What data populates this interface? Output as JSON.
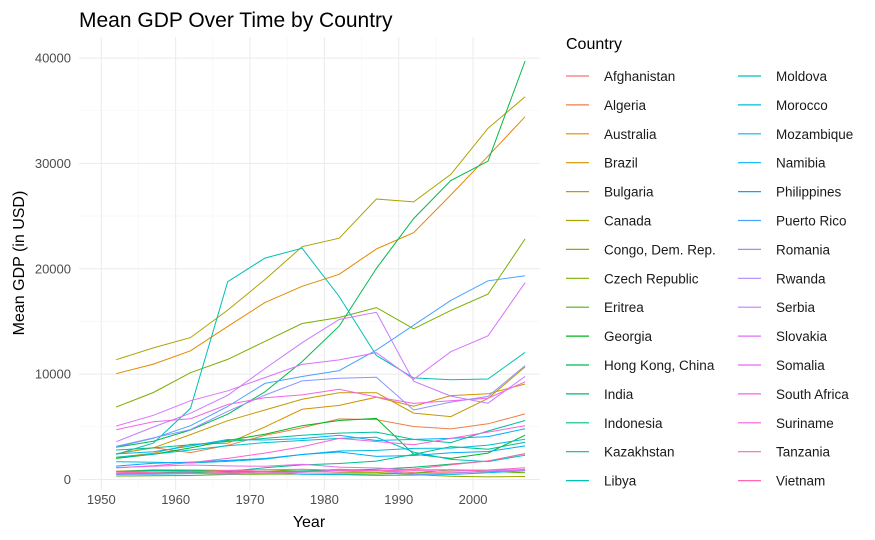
{
  "chart_data": {
    "type": "line",
    "title": "Mean GDP Over Time by Country",
    "xlabel": "Year",
    "ylabel": "Mean GDP (in USD)",
    "xlim": [
      1947,
      2009
    ],
    "ylim": [
      -1000,
      42000
    ],
    "x_ticks": [
      1950,
      1960,
      1970,
      1980,
      1990,
      2000
    ],
    "y_ticks": [
      0,
      10000,
      20000,
      30000,
      40000
    ],
    "x_tick_labels": [
      "1950",
      "1960",
      "1970",
      "1980",
      "1990",
      "2000"
    ],
    "y_tick_labels": [
      "0",
      "10000",
      "20000",
      "30000",
      "40000"
    ],
    "grid": true,
    "legend": {
      "title": "Country",
      "position": "right",
      "columns": 2
    },
    "x": [
      1952,
      1957,
      1962,
      1967,
      1972,
      1977,
      1982,
      1987,
      1992,
      1997,
      2002,
      2007
    ],
    "series": [
      {
        "name": "Afghanistan",
        "color": "#F8766D",
        "values": [
          779,
          821,
          853,
          836,
          740,
          786,
          978,
          852,
          649,
          635,
          727,
          975
        ]
      },
      {
        "name": "Algeria",
        "color": "#EF7F49",
        "values": [
          2449,
          3014,
          2551,
          3247,
          4183,
          4910,
          5745,
          5681,
          5023,
          4797,
          5288,
          6223
        ]
      },
      {
        "name": "Australia",
        "color": "#E38900",
        "values": [
          10040,
          10950,
          12217,
          14526,
          16789,
          18334,
          19477,
          21889,
          23425,
          26998,
          30688,
          34435
        ]
      },
      {
        "name": "Brazil",
        "color": "#D49200",
        "values": [
          2109,
          2487,
          3337,
          3430,
          4986,
          6660,
          7031,
          7807,
          6950,
          7958,
          8131,
          9066
        ]
      },
      {
        "name": "Bulgaria",
        "color": "#C29A00",
        "values": [
          2444,
          3009,
          4254,
          5578,
          6597,
          7612,
          8225,
          8239,
          6303,
          5970,
          7697,
          10681
        ]
      },
      {
        "name": "Canada",
        "color": "#ADA200",
        "values": [
          11367,
          12490,
          13462,
          16077,
          18971,
          22091,
          22899,
          26627,
          26343,
          28955,
          33329,
          36319
        ]
      },
      {
        "name": "Congo, Dem. Rep.",
        "color": "#96A900",
        "values": [
          781,
          906,
          896,
          862,
          905,
          796,
          674,
          672,
          458,
          313,
          241,
          278
        ]
      },
      {
        "name": "Czech Republic",
        "color": "#7BAE00",
        "values": [
          6876,
          8256,
          10137,
          11399,
          13108,
          14800,
          15377,
          16310,
          14297,
          16049,
          17596,
          22833
        ]
      },
      {
        "name": "Eritrea",
        "color": "#58B300",
        "values": [
          329,
          344,
          381,
          468,
          514,
          505,
          524,
          521,
          582,
          913,
          765,
          641
        ]
      },
      {
        "name": "Georgia",
        "color": "#00B61D",
        "values": [
          2000,
          2400,
          3000,
          3700,
          4300,
          5100,
          5600,
          5800,
          2400,
          2000,
          2500,
          4200
        ]
      },
      {
        "name": "Hong Kong, China",
        "color": "#00B94A",
        "values": [
          3054,
          3629,
          4693,
          6198,
          8316,
          11186,
          14561,
          20038,
          24758,
          28378,
          30209,
          39725
        ]
      },
      {
        "name": "India",
        "color": "#00BB6A",
        "values": [
          547,
          590,
          658,
          701,
          724,
          813,
          856,
          977,
          1164,
          1459,
          1747,
          2452
        ]
      },
      {
        "name": "Indonesia",
        "color": "#00BD85",
        "values": [
          750,
          859,
          849,
          762,
          1111,
          1383,
          1517,
          1748,
          2383,
          3119,
          2874,
          3541
        ]
      },
      {
        "name": "Kazakhstan",
        "color": "#00BE9C",
        "values": [
          2800,
          3000,
          3300,
          3600,
          3900,
          4200,
          4400,
          4500,
          3800,
          3500,
          4600,
          5600
        ]
      },
      {
        "name": "Libya",
        "color": "#00BFB3",
        "values": [
          2388,
          3448,
          6757,
          18773,
          21011,
          21951,
          17364,
          11770,
          9641,
          9467,
          9535,
          12057
        ]
      },
      {
        "name": "Moldova",
        "color": "#00BFC8",
        "values": [
          2100,
          2400,
          2800,
          3200,
          3500,
          3700,
          3900,
          4000,
          2600,
          1900,
          1700,
          2300
        ]
      },
      {
        "name": "Morocco",
        "color": "#00BDDB",
        "values": [
          1688,
          1643,
          1566,
          1711,
          1930,
          2371,
          2703,
          2756,
          2948,
          2982,
          3258,
          3820
        ]
      },
      {
        "name": "Mozambique",
        "color": "#00B9EC",
        "values": [
          469,
          496,
          556,
          566,
          724,
          502,
          462,
          390,
          410,
          473,
          634,
          824
        ]
      },
      {
        "name": "Namibia",
        "color": "#00B3FA",
        "values": [
          2424,
          2622,
          3173,
          3793,
          3746,
          3876,
          4191,
          3694,
          3804,
          3899,
          4072,
          4811
        ]
      },
      {
        "name": "Philippines",
        "color": "#00ABFD",
        "values": [
          1273,
          1548,
          1650,
          1814,
          1989,
          2373,
          2603,
          2190,
          2279,
          2536,
          2651,
          3190
        ]
      },
      {
        "name": "Puerto Rico",
        "color": "#4CA2FF",
        "values": [
          3082,
          3907,
          5108,
          6930,
          9123,
          9771,
          10331,
          12281,
          14642,
          16999,
          18855,
          19329
        ]
      },
      {
        "name": "Romania",
        "color": "#8B96FF",
        "values": [
          3144,
          3943,
          4734,
          6471,
          8011,
          9356,
          9605,
          9697,
          6598,
          7346,
          7886,
          10809
        ]
      },
      {
        "name": "Rwanda",
        "color": "#AF8AFF",
        "values": [
          493,
          540,
          597,
          511,
          591,
          670,
          882,
          848,
          496,
          590,
          786,
          863
        ]
      },
      {
        "name": "Serbia",
        "color": "#C77CFF",
        "values": [
          3581,
          4981,
          6290,
          7991,
          10522,
          12980,
          15181,
          15871,
          9325,
          7915,
          7236,
          9787
        ]
      },
      {
        "name": "Slovakia",
        "color": "#DA72FB",
        "values": [
          5075,
          6093,
          7481,
          8412,
          9674,
          10923,
          11349,
          12037,
          9498,
          12127,
          13638,
          18679
        ]
      },
      {
        "name": "Somalia",
        "color": "#E86BF2",
        "values": [
          1136,
          1258,
          1369,
          1285,
          1254,
          1451,
          1177,
          1093,
          927,
          930,
          882,
          926
        ]
      },
      {
        "name": "South Africa",
        "color": "#F365E6",
        "values": [
          4725,
          5487,
          5769,
          7114,
          7766,
          8028,
          8568,
          7826,
          7225,
          7479,
          7711,
          9270
        ]
      },
      {
        "name": "Suriname",
        "color": "#FB61D7",
        "values": [
          1100,
          1300,
          1600,
          2000,
          2500,
          3100,
          3900,
          3600,
          3300,
          3900,
          4500,
          5100
        ]
      },
      {
        "name": "Tanzania",
        "color": "#FF62C4",
        "values": [
          717,
          698,
          722,
          848,
          916,
          962,
          875,
          832,
          825,
          789,
          899,
          1107
        ]
      },
      {
        "name": "Vietnam",
        "color": "#FF67AE",
        "values": [
          605,
          676,
          772,
          637,
          700,
          714,
          707,
          821,
          989,
          1386,
          1764,
          2442
        ]
      }
    ]
  }
}
